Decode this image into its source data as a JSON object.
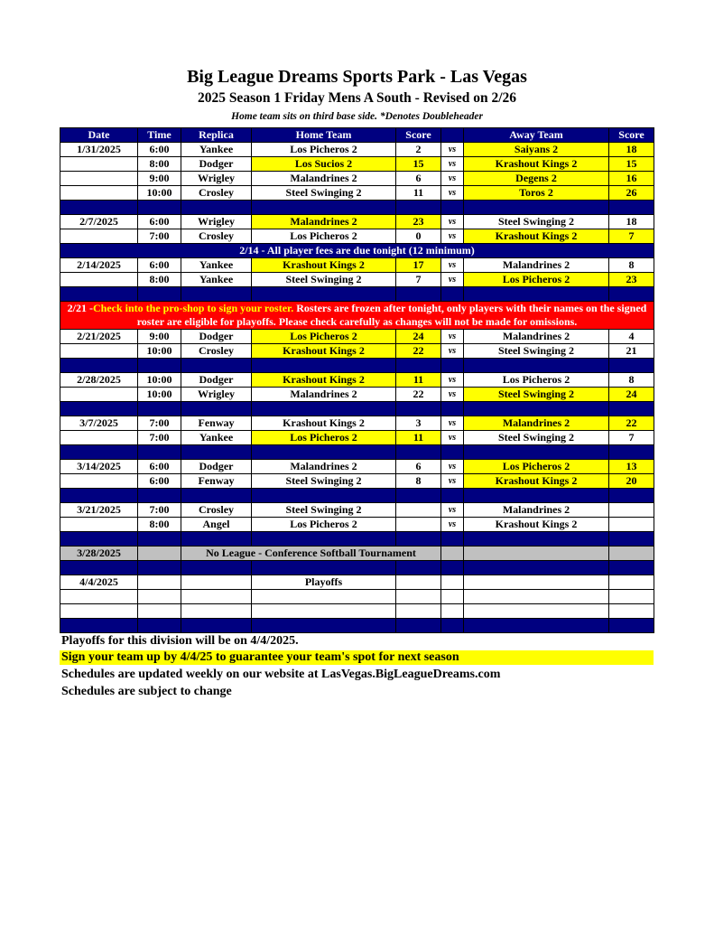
{
  "title": "Big League Dreams Sports Park - Las Vegas",
  "subtitle": "2025 Season 1 Friday Mens A South - Revised on 2/26",
  "note": "Home team sits on third base side.  *Denotes Doubleheader",
  "headers": [
    "Date",
    "Time",
    "Replica",
    "Home Team",
    "Score",
    "",
    "Away Team",
    "Score"
  ],
  "colors": {
    "header": "#000080",
    "highlight": "#ffff00",
    "alert": "#ff0000",
    "grey": "#c0c0c0"
  },
  "rows": [
    {
      "type": "game",
      "date": "1/31/2025",
      "time": "6:00",
      "replica": "Yankee",
      "home": "Los Picheros 2",
      "hs": "2",
      "vs": "vs",
      "away": "Saiyans 2",
      "as": "18",
      "win": "away"
    },
    {
      "type": "game",
      "date": "",
      "time": "8:00",
      "replica": "Dodger",
      "home": "Los Sucios 2",
      "hs": "15",
      "vs": "vs",
      "away": "Krashout Kings 2",
      "as": "15",
      "win": "both"
    },
    {
      "type": "game",
      "date": "",
      "time": "9:00",
      "replica": "Wrigley",
      "home": "Malandrines 2",
      "hs": "6",
      "vs": "vs",
      "away": "Degens 2",
      "as": "16",
      "win": "away"
    },
    {
      "type": "game",
      "date": "",
      "time": "10:00",
      "replica": "Crosley",
      "home": "Steel Swinging 2",
      "hs": "11",
      "vs": "vs",
      "away": "Toros 2",
      "as": "26",
      "win": "away"
    },
    {
      "type": "blue"
    },
    {
      "type": "game",
      "date": "2/7/2025",
      "time": "6:00",
      "replica": "Wrigley",
      "home": "Malandrines 2",
      "hs": "23",
      "vs": "vs",
      "away": "Steel Swinging 2",
      "as": "18",
      "win": "home"
    },
    {
      "type": "game",
      "date": "",
      "time": "7:00",
      "replica": "Crosley",
      "home": "Los Picheros 2",
      "hs": "0",
      "vs": "vs",
      "away": "Krashout Kings 2",
      "as": "7",
      "win": "away"
    },
    {
      "type": "note",
      "text": "2/14 - All player fees are due tonight (12 minimum)"
    },
    {
      "type": "game",
      "date": "2/14/2025",
      "time": "6:00",
      "replica": "Yankee",
      "home": "Krashout Kings 2",
      "hs": "17",
      "vs": "vs",
      "away": "Malandrines 2",
      "as": "8",
      "win": "home"
    },
    {
      "type": "game",
      "date": "",
      "time": "8:00",
      "replica": "Yankee",
      "home": "Steel Swinging 2",
      "hs": "7",
      "vs": "vs",
      "away": "Los Picheros 2",
      "as": "23",
      "win": "away"
    },
    {
      "type": "blue"
    },
    {
      "type": "red",
      "prefix": "2/21 -",
      "highlight": "Check into the pro-shop to sign your roster.",
      "text": " Rosters are frozen after tonight, only players with their names on the signed roster are eligible for playoffs. Please check carefully as changes will not be made for omissions."
    },
    {
      "type": "game",
      "date": "2/21/2025",
      "time": "9:00",
      "replica": "Dodger",
      "home": "Los Picheros 2",
      "hs": "24",
      "vs": "vs",
      "away": "Malandrines 2",
      "as": "4",
      "win": "home"
    },
    {
      "type": "game",
      "date": "",
      "time": "10:00",
      "replica": "Crosley",
      "home": "Krashout Kings 2",
      "hs": "22",
      "vs": "vs",
      "away": "Steel Swinging 2",
      "as": "21",
      "win": "home"
    },
    {
      "type": "blue"
    },
    {
      "type": "game",
      "date": "2/28/2025",
      "time": "10:00",
      "replica": "Dodger",
      "home": "Krashout Kings 2",
      "hs": "11",
      "vs": "vs",
      "away": "Los Picheros 2",
      "as": "8",
      "win": "home"
    },
    {
      "type": "game",
      "date": "",
      "time": "10:00",
      "replica": "Wrigley",
      "home": "Malandrines 2",
      "hs": "22",
      "vs": "vs",
      "away": "Steel Swinging 2",
      "as": "24",
      "win": "away"
    },
    {
      "type": "blue"
    },
    {
      "type": "game",
      "date": "3/7/2025",
      "time": "7:00",
      "replica": "Fenway",
      "home": "Krashout Kings 2",
      "hs": "3",
      "vs": "vs",
      "away": "Malandrines 2",
      "as": "22",
      "win": "away"
    },
    {
      "type": "game",
      "date": "",
      "time": "7:00",
      "replica": "Yankee",
      "home": "Los Picheros 2",
      "hs": "11",
      "vs": "vs",
      "away": "Steel Swinging 2",
      "as": "7",
      "win": "home"
    },
    {
      "type": "blue"
    },
    {
      "type": "game",
      "date": "3/14/2025",
      "time": "6:00",
      "replica": "Dodger",
      "home": "Malandrines 2",
      "hs": "6",
      "vs": "vs",
      "away": "Los Picheros 2",
      "as": "13",
      "win": "away"
    },
    {
      "type": "game",
      "date": "",
      "time": "6:00",
      "replica": "Fenway",
      "home": "Steel Swinging 2",
      "hs": "8",
      "vs": "vs",
      "away": "Krashout Kings 2",
      "as": "20",
      "win": "away"
    },
    {
      "type": "blue"
    },
    {
      "type": "game",
      "date": "3/21/2025",
      "time": "7:00",
      "replica": "Crosley",
      "home": "Steel Swinging 2",
      "hs": "",
      "vs": "vs",
      "away": "Malandrines 2",
      "as": "",
      "win": ""
    },
    {
      "type": "game",
      "date": "",
      "time": "8:00",
      "replica": "Angel",
      "home": "Los Picheros 2",
      "hs": "",
      "vs": "vs",
      "away": "Krashout Kings 2",
      "as": "",
      "win": ""
    },
    {
      "type": "blue"
    },
    {
      "type": "grey",
      "date": "3/28/2025",
      "text": "No League - Conference Softball Tournament"
    },
    {
      "type": "blue"
    },
    {
      "type": "game",
      "date": "4/4/2025",
      "time": "",
      "replica": "",
      "home": "Playoffs",
      "hs": "",
      "vs": "",
      "away": "",
      "as": "",
      "win": ""
    },
    {
      "type": "game",
      "date": "",
      "time": "",
      "replica": "",
      "home": "",
      "hs": "",
      "vs": "",
      "away": "",
      "as": "",
      "win": ""
    },
    {
      "type": "game",
      "date": "",
      "time": "",
      "replica": "",
      "home": "",
      "hs": "",
      "vs": "",
      "away": "",
      "as": "",
      "win": ""
    },
    {
      "type": "blue"
    }
  ],
  "footer": {
    "line1": "Playoffs for this division will be on 4/4/2025.",
    "line2": "Sign your team up by 4/4/25 to guarantee your team's spot for next season",
    "line3": "Schedules are updated weekly on our website at LasVegas.BigLeagueDreams.com",
    "line4": "Schedules are subject to change"
  }
}
